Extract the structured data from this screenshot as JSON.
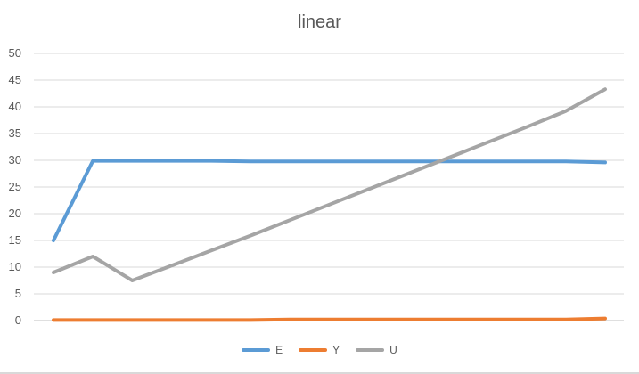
{
  "chart_data": {
    "type": "line",
    "title": "linear",
    "xlabel": "",
    "ylabel": "",
    "ylim": [
      0,
      50
    ],
    "yticks": [
      0,
      5,
      10,
      15,
      20,
      25,
      30,
      35,
      40,
      45,
      50
    ],
    "grid": true,
    "legend_position": "bottom",
    "x": [
      1,
      2,
      3,
      4,
      5,
      6,
      7,
      8,
      9,
      10,
      11,
      12,
      13,
      14,
      15
    ],
    "series": [
      {
        "name": "E",
        "color": "#5b9bd5",
        "values": [
          15,
          29.9,
          29.9,
          29.9,
          29.9,
          29.8,
          29.8,
          29.8,
          29.8,
          29.8,
          29.8,
          29.8,
          29.8,
          29.8,
          29.6
        ]
      },
      {
        "name": "Y",
        "color": "#ed7d31",
        "values": [
          0.1,
          0.1,
          0.1,
          0.1,
          0.1,
          0.1,
          0.2,
          0.2,
          0.2,
          0.2,
          0.2,
          0.2,
          0.2,
          0.2,
          0.4
        ]
      },
      {
        "name": "U",
        "color": "#a5a5a5",
        "values": [
          9,
          12,
          7.5,
          10.3,
          13.1,
          15.9,
          18.8,
          21.7,
          24.6,
          27.5,
          30.4,
          33.3,
          36.2,
          39.2,
          43.3
        ]
      }
    ]
  }
}
